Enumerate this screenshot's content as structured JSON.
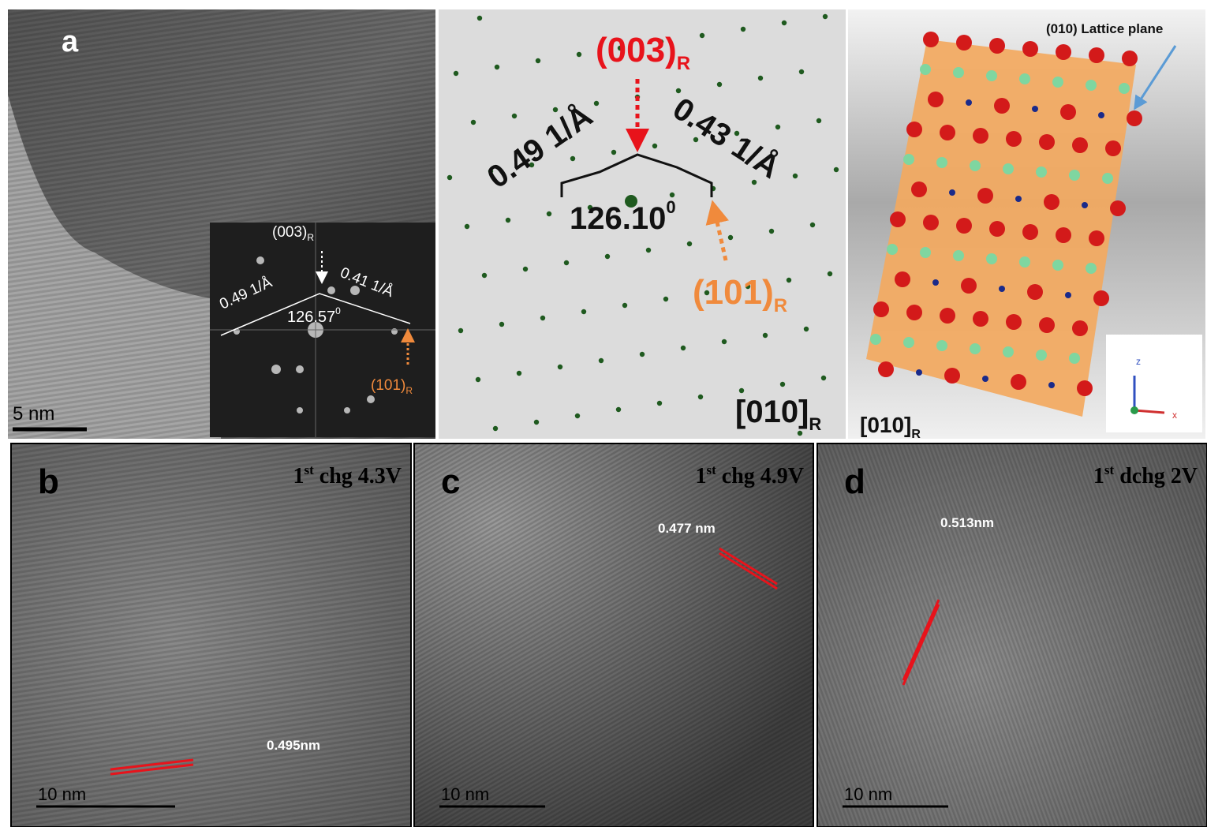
{
  "panel_a": {
    "label": "a",
    "scale_bar": "5 nm",
    "inset": {
      "top_plane": {
        "text": "(003)",
        "sub": "R"
      },
      "d_left": "0.49 1/Å",
      "d_right": "0.41 1/Å",
      "angle": {
        "text": "126.57",
        "sup": "0"
      },
      "side_plane": {
        "text": "(101)",
        "sub": "R"
      }
    }
  },
  "panel_saed": {
    "top_plane": {
      "text": "(003)",
      "sub": "R"
    },
    "d_left": "0.49 1/Å",
    "d_right": "0.43 1/Å",
    "angle": {
      "text": "126.10",
      "sup": "0"
    },
    "side_plane": {
      "text": "(101)",
      "sub": "R"
    },
    "zone_axis": {
      "text": "[010]",
      "sub": "R"
    }
  },
  "panel_model": {
    "callout": "(010) Lattice plane",
    "zone_axis": {
      "text": "[010]",
      "sub": "R"
    },
    "axes": [
      "z",
      "x"
    ]
  },
  "panels_bottom": [
    {
      "label": "b",
      "condition": {
        "pre": "1",
        "sup": "st",
        "text": "chg 4.3V"
      },
      "spacing": "0.495nm",
      "scale_bar": "10 nm"
    },
    {
      "label": "c",
      "condition": {
        "pre": "1",
        "sup": "st",
        "text": "chg 4.9V"
      },
      "spacing": "0.477 nm",
      "scale_bar": "10 nm"
    },
    {
      "label": "d",
      "condition": {
        "pre": "1",
        "sup": "st",
        "text": "dchg 2V"
      },
      "spacing": "0.513nm",
      "scale_bar": "10 nm"
    }
  ]
}
